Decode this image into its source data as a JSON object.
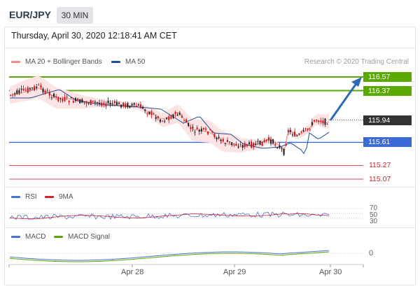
{
  "header": {
    "symbol": "EUR/JPY",
    "timeframe": "30 MIN"
  },
  "datetime": "Thursday, April 30, 2020 12:18:41 AM CET",
  "legend": {
    "bollinger_label": "MA 20 + Bollinger Bands",
    "ma50_label": "MA 50",
    "credit": "Research © 2020 Trading Central"
  },
  "levels": {
    "r2": "116.57",
    "r1": "116.37",
    "last": "115.94",
    "s1": "115.61",
    "s2": "115.27",
    "s3": "115.07"
  },
  "rsi": {
    "label": "RSI",
    "ma_label": "9MA",
    "levels": [
      "70",
      "50",
      "30"
    ]
  },
  "macd": {
    "label": "MACD",
    "signal_label": "MACD Signal",
    "zero": "0"
  },
  "x_axis": [
    "Apr 28",
    "Apr 29",
    "Apr 30"
  ],
  "colors": {
    "resistance": "#5aa800",
    "support": "#3a6ad6",
    "support_minor": "#e84a5a",
    "bollinger": "#f28b8b",
    "ma50": "#1f4e9c",
    "candle_up": "#1e1e1e",
    "candle_down": "#c8161d",
    "arrow": "#2c6ab8",
    "last_tag": "#333333"
  }
}
